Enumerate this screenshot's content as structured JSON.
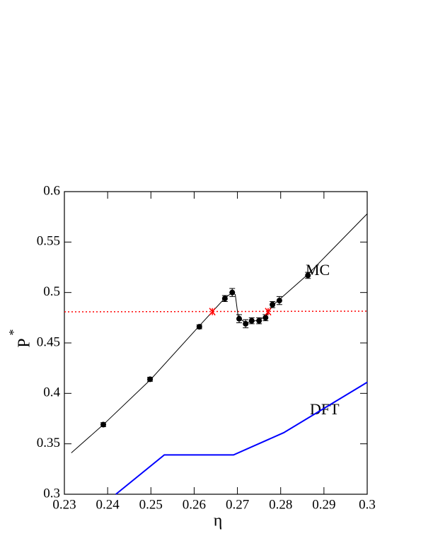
{
  "chart_data": {
    "type": "line",
    "xlabel": "η",
    "ylabel": "P",
    "ylabel_sup": "*",
    "xlim": [
      0.23,
      0.3
    ],
    "ylim": [
      0.3,
      0.6
    ],
    "xticks": [
      0.23,
      0.24,
      0.25,
      0.26,
      0.27,
      0.28,
      0.29,
      0.3
    ],
    "yticks": [
      0.3,
      0.35,
      0.4,
      0.45,
      0.5,
      0.55,
      0.6
    ],
    "series": [
      {
        "name": "MC",
        "color": "#000000",
        "x": [
          0.239,
          0.2498,
          0.2612,
          0.2671,
          0.2688,
          0.2704,
          0.2719,
          0.2733,
          0.275,
          0.2765,
          0.2781,
          0.2797,
          0.2863
        ],
        "values": [
          0.369,
          0.414,
          0.466,
          0.494,
          0.5,
          0.474,
          0.469,
          0.472,
          0.472,
          0.475,
          0.488,
          0.492,
          0.517
        ],
        "errors": [
          0.002,
          0.002,
          0.002,
          0.003,
          0.004,
          0.004,
          0.004,
          0.003,
          0.003,
          0.003,
          0.003,
          0.004,
          0.003
        ],
        "fit_x": [
          0.2316,
          0.239,
          0.25,
          0.261,
          0.267,
          0.2688,
          0.2695,
          0.2702,
          0.2719,
          0.2733,
          0.275,
          0.2765,
          0.2781,
          0.2797,
          0.2863,
          0.3
        ],
        "fit_values": [
          0.341,
          0.369,
          0.414,
          0.466,
          0.494,
          0.5,
          0.498,
          0.475,
          0.47,
          0.471,
          0.473,
          0.476,
          0.487,
          0.493,
          0.518,
          0.578
        ]
      },
      {
        "name": "DFT",
        "color": "#0000ff",
        "x": [
          0.2419,
          0.2531,
          0.2691,
          0.2807,
          0.3
        ],
        "values": [
          0.3,
          0.339,
          0.339,
          0.361,
          0.411
        ]
      }
    ],
    "reference": {
      "color": "#ff0000",
      "x": [
        0.23,
        0.3
      ],
      "values": [
        0.4808,
        0.4815
      ]
    },
    "crossings": {
      "color": "#ff0000",
      "x": [
        0.2642,
        0.2771
      ],
      "values": [
        0.481,
        0.481
      ]
    }
  }
}
